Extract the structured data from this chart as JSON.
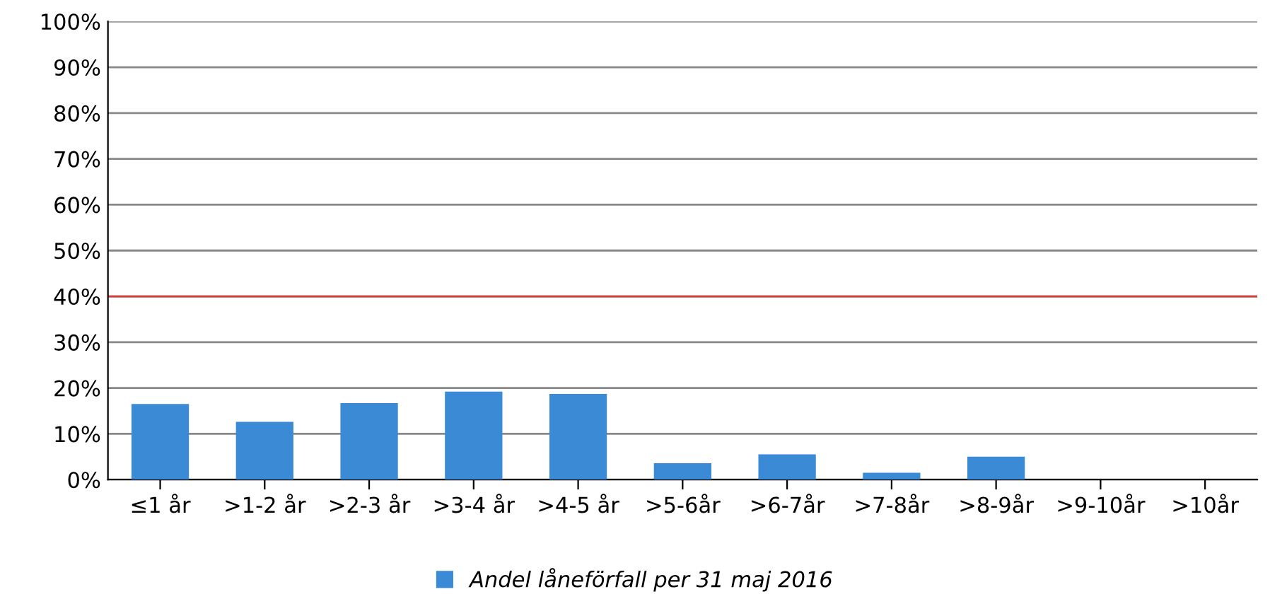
{
  "chart_data": {
    "type": "bar",
    "categories": [
      "≤1 år",
      ">1-2 år",
      ">2-3 år",
      ">3-4 år",
      ">4-5 år",
      ">5-6år",
      ">6-7år",
      ">7-8år",
      ">8-9år",
      ">9-10år",
      ">10år"
    ],
    "series": [
      {
        "name": "Andel låneförfall per 31 maj 2016",
        "color": "#3a8ad6",
        "values": [
          16.5,
          12.6,
          16.7,
          19.2,
          18.7,
          3.6,
          5.5,
          1.5,
          5.0,
          0,
          0
        ]
      }
    ],
    "ylim": [
      0,
      100
    ],
    "yticks": [
      {
        "value": 0,
        "label": "0%"
      },
      {
        "value": 10,
        "label": "10%"
      },
      {
        "value": 20,
        "label": "20%"
      },
      {
        "value": 30,
        "label": "30%"
      },
      {
        "value": 40,
        "label": "40%"
      },
      {
        "value": 50,
        "label": "50%"
      },
      {
        "value": 60,
        "label": "60%"
      },
      {
        "value": 70,
        "label": "70%"
      },
      {
        "value": 80,
        "label": "80%"
      },
      {
        "value": 90,
        "label": "90%"
      },
      {
        "value": 100,
        "label": "100%"
      }
    ],
    "ref_lines": [
      {
        "axis": "y",
        "value": 40,
        "color": "#d04040"
      }
    ],
    "grid": "y",
    "legend": "bottom"
  }
}
